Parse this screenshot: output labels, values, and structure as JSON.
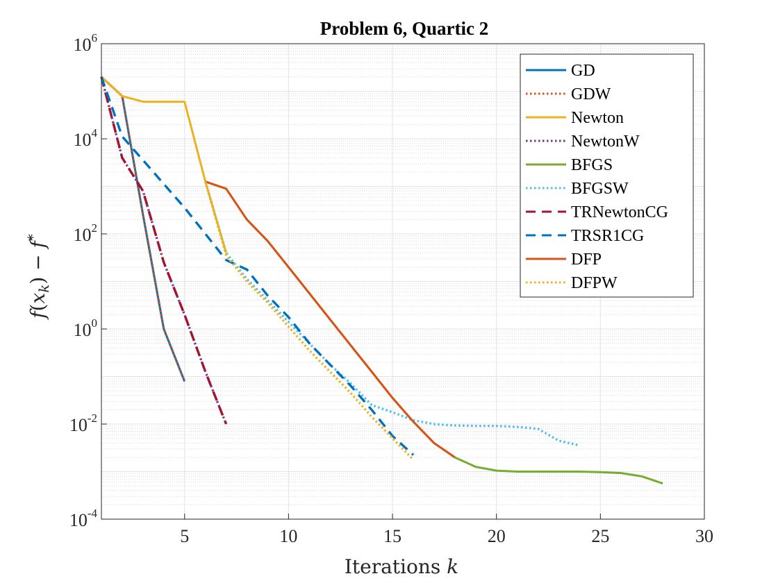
{
  "chart_data": {
    "type": "line",
    "title": "Problem 6, Quartic 2",
    "xlabel": "Iterations k",
    "ylabel": "f(x_k) − f*",
    "xlim": [
      1,
      30
    ],
    "ylim_log10": [
      -4,
      6
    ],
    "y_scale": "log",
    "x_ticks": [
      5,
      10,
      15,
      20,
      25,
      30
    ],
    "y_ticks": [
      {
        "exp": -4,
        "label": "10",
        "sup": "-4"
      },
      {
        "exp": -2,
        "label": "10",
        "sup": "-2"
      },
      {
        "exp": 0,
        "label": "10",
        "sup": "0"
      },
      {
        "exp": 2,
        "label": "10",
        "sup": "2"
      },
      {
        "exp": 4,
        "label": "10",
        "sup": "4"
      },
      {
        "exp": 6,
        "label": "10",
        "sup": "6"
      }
    ],
    "grid": true,
    "minor_grid": true,
    "legend_position": "top-right",
    "series": [
      {
        "name": "GD",
        "color": "#0072BD",
        "dash": "solid",
        "x": [
          1,
          2,
          3,
          4,
          5
        ],
        "log10_y": [
          5.3,
          4.9,
          2.4,
          0.0,
          -1.1
        ]
      },
      {
        "name": "GDW",
        "color": "#D95319",
        "dash": "dotted",
        "x": [
          1,
          2,
          3,
          4,
          5
        ],
        "log10_y": [
          5.3,
          4.9,
          2.4,
          0.0,
          -1.1
        ]
      },
      {
        "name": "Newton",
        "color": "#EDB120",
        "dash": "solid",
        "x": [
          1,
          2,
          3,
          4,
          5,
          6,
          7
        ],
        "log10_y": [
          5.3,
          4.9,
          4.78,
          4.78,
          4.78,
          3.1,
          1.6
        ]
      },
      {
        "name": "NewtonW",
        "color": "#7E2F8E",
        "dash": "dotted",
        "x": [
          1,
          2,
          3,
          4,
          5,
          6,
          7
        ],
        "log10_y": [
          5.3,
          3.6,
          2.9,
          1.4,
          0.3,
          -0.9,
          -2.0
        ]
      },
      {
        "name": "BFGS",
        "color": "#77AC30",
        "dash": "solid",
        "x": [
          6,
          7,
          8,
          9,
          10,
          11,
          12,
          13,
          14,
          15,
          16,
          17,
          18,
          19,
          20,
          21,
          22,
          23,
          24,
          25,
          26,
          27,
          28
        ],
        "log10_y": [
          3.1,
          2.95,
          2.3,
          1.85,
          1.3,
          0.75,
          0.2,
          -0.35,
          -0.9,
          -1.45,
          -1.95,
          -2.4,
          -2.7,
          -2.9,
          -2.98,
          -3.0,
          -3.0,
          -3.0,
          -3.0,
          -3.01,
          -3.03,
          -3.1,
          -3.25
        ]
      },
      {
        "name": "BFGSW",
        "color": "#4DBEEE",
        "dash": "dotted",
        "x": [
          6,
          7,
          8,
          9,
          10,
          11,
          12,
          13,
          14,
          15,
          16,
          17,
          18,
          19,
          20,
          21,
          22,
          23,
          24
        ],
        "log10_y": [
          3.1,
          1.6,
          1.05,
          0.6,
          0.15,
          -0.3,
          -0.75,
          -1.15,
          -1.6,
          -1.75,
          -1.92,
          -2.0,
          -2.03,
          -2.04,
          -2.04,
          -2.06,
          -2.1,
          -2.35,
          -2.45
        ]
      },
      {
        "name": "TRNewtonCG",
        "color": "#A2142F",
        "dash": "dashed",
        "x": [
          1,
          2,
          3,
          4,
          5,
          6,
          7
        ],
        "log10_y": [
          5.3,
          3.6,
          2.9,
          1.4,
          0.3,
          -0.9,
          -2.0
        ]
      },
      {
        "name": "TRSR1CG",
        "color": "#0072BD",
        "dash": "dashed",
        "x": [
          1,
          2,
          3,
          4,
          5,
          6,
          7,
          8,
          9,
          10,
          11,
          12,
          13,
          14,
          15,
          16
        ],
        "log10_y": [
          5.3,
          4.05,
          3.55,
          3.05,
          2.55,
          2.0,
          1.45,
          1.25,
          0.7,
          0.25,
          -0.3,
          -0.75,
          -1.2,
          -1.7,
          -2.25,
          -2.65
        ]
      },
      {
        "name": "DFP",
        "color": "#D95319",
        "dash": "solid",
        "x": [
          6,
          7,
          8,
          9,
          10,
          11,
          12,
          13,
          14,
          15,
          16,
          17,
          18
        ],
        "log10_y": [
          3.1,
          2.95,
          2.3,
          1.85,
          1.3,
          0.75,
          0.2,
          -0.35,
          -0.9,
          -1.45,
          -1.95,
          -2.4,
          -2.7
        ]
      },
      {
        "name": "DFPW",
        "color": "#EDB120",
        "dash": "dotted",
        "x": [
          6,
          7,
          8,
          9,
          10,
          11,
          12,
          13,
          14,
          15,
          16
        ],
        "log10_y": [
          3.1,
          1.55,
          1.0,
          0.55,
          0.05,
          -0.45,
          -0.9,
          -1.35,
          -1.85,
          -2.3,
          -2.75
        ]
      }
    ]
  }
}
